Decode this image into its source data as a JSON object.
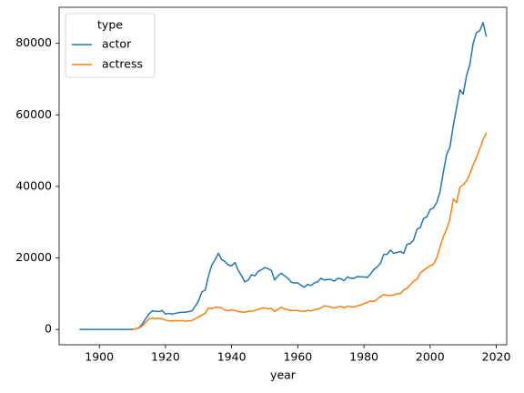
{
  "chart_data": {
    "type": "line",
    "xlabel": "year",
    "legend_title": "type",
    "legend": "upper left",
    "x": [
      1894,
      1895,
      1896,
      1897,
      1898,
      1899,
      1900,
      1901,
      1902,
      1903,
      1904,
      1905,
      1906,
      1907,
      1908,
      1909,
      1910,
      1911,
      1912,
      1913,
      1914,
      1915,
      1916,
      1917,
      1918,
      1919,
      1920,
      1921,
      1922,
      1923,
      1924,
      1925,
      1926,
      1927,
      1928,
      1929,
      1930,
      1931,
      1932,
      1933,
      1934,
      1935,
      1936,
      1937,
      1938,
      1939,
      1940,
      1941,
      1942,
      1943,
      1944,
      1945,
      1946,
      1947,
      1948,
      1949,
      1950,
      1951,
      1952,
      1953,
      1954,
      1955,
      1956,
      1957,
      1958,
      1959,
      1960,
      1961,
      1962,
      1963,
      1964,
      1965,
      1966,
      1967,
      1968,
      1969,
      1970,
      1971,
      1972,
      1973,
      1974,
      1975,
      1976,
      1977,
      1978,
      1979,
      1980,
      1981,
      1982,
      1983,
      1984,
      1985,
      1986,
      1987,
      1988,
      1989,
      1990,
      1991,
      1992,
      1993,
      1994,
      1995,
      1996,
      1997,
      1998,
      1999,
      2000,
      2001,
      2002,
      2003,
      2004,
      2005,
      2006,
      2007,
      2008,
      2009,
      2010,
      2011,
      2012,
      2013,
      2014,
      2015,
      2016,
      2017
    ],
    "series": [
      {
        "name": "actor",
        "color": "#1f77b4",
        "values": [
          0,
          0,
          0,
          0,
          0,
          0,
          0,
          0,
          0,
          0,
          0,
          0,
          0,
          0,
          0,
          0,
          0,
          200,
          500,
          1500,
          3000,
          4300,
          5200,
          5100,
          5000,
          5300,
          4300,
          4500,
          4300,
          4500,
          4700,
          4800,
          4800,
          5000,
          5200,
          6500,
          8000,
          10500,
          11000,
          15000,
          18000,
          19500,
          21300,
          19500,
          19000,
          18000,
          17800,
          18700,
          16500,
          15000,
          13300,
          13800,
          15300,
          15000,
          16200,
          16700,
          17300,
          17000,
          16500,
          13800,
          15000,
          15700,
          15000,
          14300,
          13200,
          13000,
          13000,
          12300,
          11800,
          12600,
          12300,
          13000,
          13300,
          14300,
          13800,
          14000,
          14000,
          13500,
          14300,
          14200,
          13600,
          14700,
          14300,
          14300,
          14800,
          14700,
          14700,
          14500,
          15500,
          16800,
          17500,
          18500,
          21000,
          21000,
          22200,
          21300,
          21500,
          21800,
          21300,
          23800,
          24000,
          25000,
          28000,
          28500,
          31000,
          31500,
          33500,
          34000,
          35500,
          38500,
          44000,
          49000,
          51000,
          57000,
          62000,
          67000,
          65800,
          71000,
          74000,
          80000,
          83000,
          83500,
          85800,
          81800
        ]
      },
      {
        "name": "actress",
        "color": "#ff7f0e",
        "values": [
          null,
          null,
          null,
          null,
          null,
          null,
          null,
          null,
          null,
          null,
          null,
          null,
          null,
          null,
          null,
          null,
          0,
          200,
          400,
          1000,
          2000,
          3000,
          3200,
          3000,
          3100,
          3000,
          2600,
          2400,
          2400,
          2500,
          2400,
          2500,
          2300,
          2400,
          2500,
          3000,
          3500,
          4000,
          4500,
          6000,
          5800,
          6200,
          6200,
          6000,
          5400,
          5200,
          5500,
          5300,
          5000,
          4900,
          4800,
          5100,
          5100,
          5300,
          5600,
          5900,
          6000,
          5800,
          5900,
          5000,
          5600,
          6200,
          5700,
          5500,
          5300,
          5300,
          5300,
          5100,
          5100,
          5300,
          5200,
          5500,
          5700,
          6000,
          6600,
          6500,
          6200,
          6000,
          6200,
          6500,
          6000,
          6500,
          6300,
          6300,
          6600,
          6800,
          7200,
          7500,
          8000,
          7800,
          8500,
          9200,
          9800,
          9500,
          9500,
          9600,
          10000,
          10000,
          11000,
          11500,
          12500,
          13500,
          14000,
          15800,
          16500,
          17200,
          17800,
          18200,
          20000,
          23000,
          26000,
          28000,
          31000,
          36500,
          35500,
          39800,
          40500,
          41500,
          43500,
          46000,
          48000,
          50500,
          53000,
          55000
        ]
      }
    ],
    "xlim": [
      1887.85,
      2023.15
    ],
    "ylim": [
      -4290,
      90090
    ],
    "xticks": [
      1900,
      1920,
      1940,
      1960,
      1980,
      2000,
      2020
    ],
    "yticks": [
      0,
      20000,
      40000,
      60000,
      80000
    ]
  }
}
